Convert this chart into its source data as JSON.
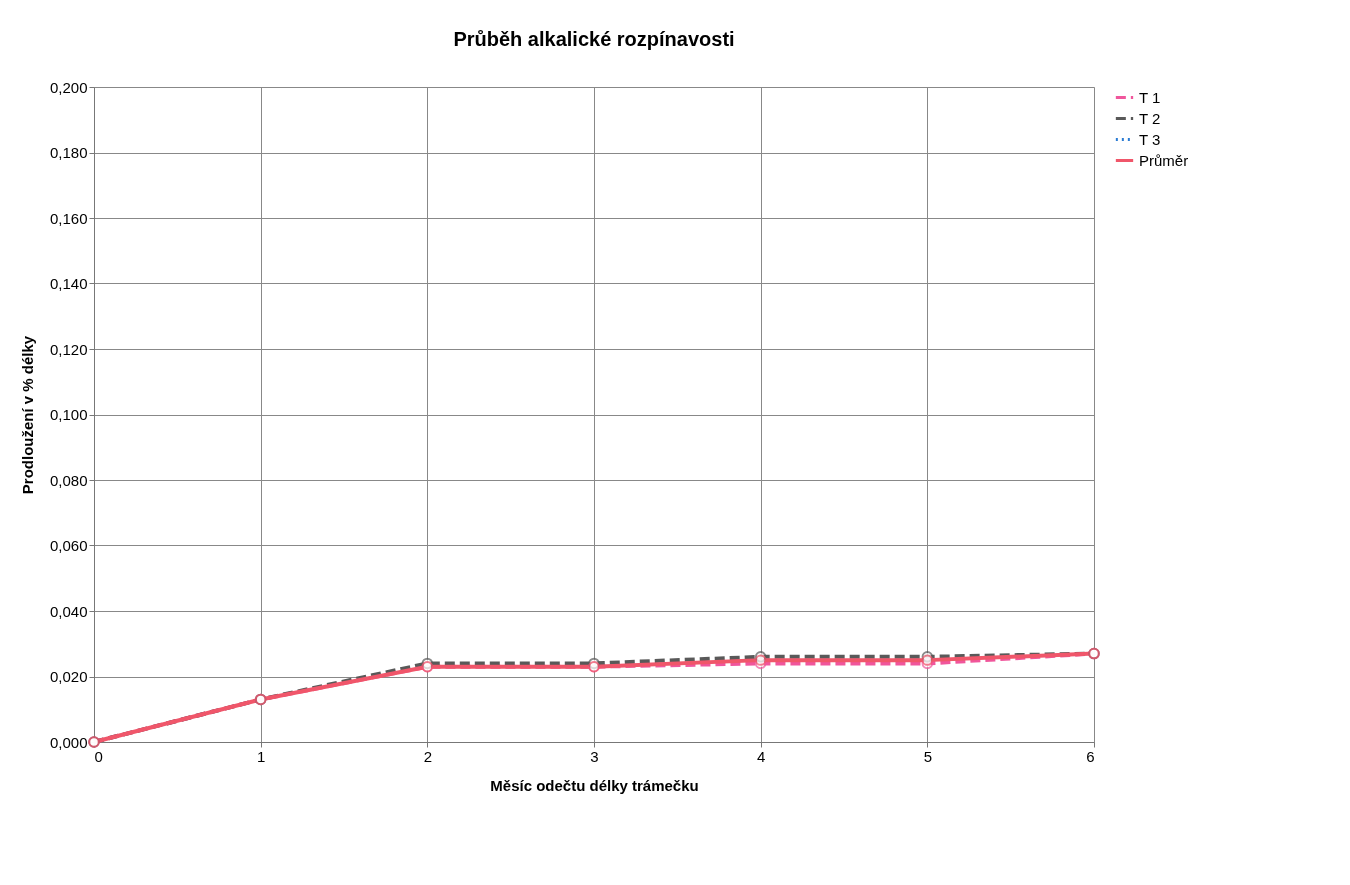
{
  "chart_data": {
    "type": "line",
    "title": "Průběh alkalické rozpínavosti",
    "xlabel": "Měsíc odečtu délky trámečku",
    "ylabel": "Prodloužení v % délky",
    "x": [
      0,
      1,
      2,
      3,
      4,
      5,
      6
    ],
    "series": [
      {
        "name": "T 1",
        "color": "#f0569c",
        "line_style": "dashed",
        "values": [
          0,
          0.013,
          0.023,
          0.023,
          0.024,
          0.024,
          0.027
        ]
      },
      {
        "name": "T 2",
        "color": "#595959",
        "line_style": "dashed",
        "values": [
          0,
          0.013,
          0.024,
          0.024,
          0.026,
          0.026,
          0.027
        ]
      },
      {
        "name": "T 3",
        "color": "#2a7bd3",
        "line_style": "dotted",
        "values": [
          null,
          null,
          null,
          null,
          null,
          null,
          null
        ]
      },
      {
        "name": "Průměr",
        "color": "#f0566a",
        "line_style": "solid",
        "values": [
          0,
          0.013,
          0.023,
          0.023,
          0.025,
          0.025,
          0.027
        ]
      }
    ],
    "xlim": [
      0,
      6
    ],
    "xticks": [
      0,
      1,
      2,
      3,
      4,
      5,
      6
    ],
    "ylim": [
      0,
      0.2
    ],
    "yticks": [
      {
        "value": 0,
        "label": "0,000"
      },
      {
        "value": 0.02,
        "label": "0,020"
      },
      {
        "value": 0.04,
        "label": "0,040"
      },
      {
        "value": 0.06,
        "label": "0,060"
      },
      {
        "value": 0.08,
        "label": "0,080"
      },
      {
        "value": 0.1,
        "label": "0,100"
      },
      {
        "value": 0.12,
        "label": "0,120"
      },
      {
        "value": 0.14,
        "label": "0,140"
      },
      {
        "value": 0.16,
        "label": "0,160"
      },
      {
        "value": 0.18,
        "label": "0,180"
      },
      {
        "value": 0.2,
        "label": "0,200"
      }
    ],
    "grid": true,
    "legend": "right",
    "marker": "circle"
  }
}
